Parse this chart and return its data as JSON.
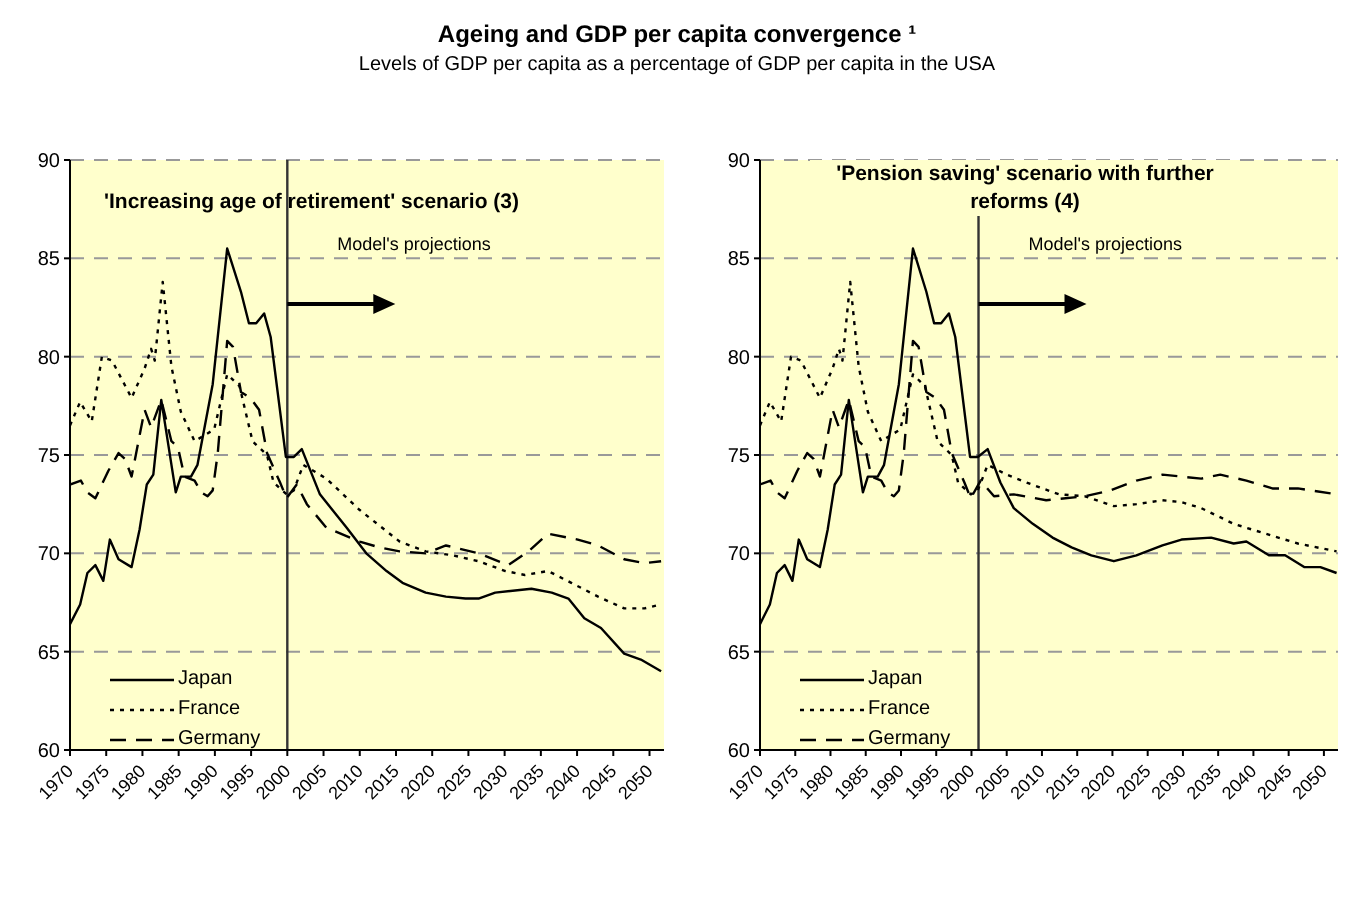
{
  "chart_data": [
    {
      "type": "line",
      "title": "Ageing and GDP per capita convergence ¹",
      "subtitle": "Levels of GDP per capita as a percentage of GDP per capita in the USA",
      "annotations": [
        "'Increasing age of retirement' scenario (3)"
      ],
      "xlim": [
        1970,
        2052
      ],
      "xticks": [
        1970,
        1975,
        1980,
        1985,
        1990,
        1995,
        2000,
        2005,
        2010,
        2015,
        2020,
        2025,
        2030,
        2035,
        2040,
        2045,
        2050
      ],
      "ylim": [
        60,
        90
      ],
      "yticks": [
        60,
        65,
        70,
        75,
        80,
        85,
        90
      ],
      "grid": "y",
      "legend": "bottom left",
      "marker": "none",
      "ref_lines": [
        {
          "axis": "x",
          "value": 2000,
          "label": "Model's projections",
          "color": "#333333"
        }
      ],
      "series": [
        {
          "name": "Japan",
          "color": "#000000",
          "line_style": "solid",
          "x": [
            1970,
            1971.4,
            1972.4,
            1973.5,
            1974.6,
            1975.5,
            1976.7,
            1978.5,
            1979.6,
            1980.6,
            1981.5,
            1982.6,
            1984.6,
            1985.3,
            1986.7,
            1987.6,
            1989.7,
            1991.7,
            1993.6,
            1994.7,
            1995.7,
            1996.8,
            1997.7,
            1999.8,
            2000.9,
            2002,
            2004.5,
            2008.2,
            2010.9,
            2013.7,
            2015.9,
            2019.1,
            2021.9,
            2024.6,
            2026.4,
            2028.7,
            2033.7,
            2036.5,
            2038.8,
            2041,
            2043.3,
            2046.5,
            2048.8,
            2051.6
          ],
          "values": [
            66.4,
            67.4,
            69.0,
            69.4,
            68.6,
            70.7,
            69.7,
            69.3,
            71.2,
            73.5,
            74.0,
            77.8,
            73.1,
            73.9,
            73.9,
            74.5,
            78.6,
            85.5,
            83.3,
            81.7,
            81.7,
            82.2,
            81.0,
            74.9,
            74.9,
            75.3,
            73.0,
            71.3,
            70.0,
            69.1,
            68.5,
            68.0,
            67.8,
            67.7,
            67.7,
            68.0,
            68.2,
            68.0,
            67.7,
            66.7,
            66.2,
            64.9,
            64.6,
            64.0
          ]
        },
        {
          "name": "France",
          "color": "#000000",
          "line_style": "dotted",
          "x": [
            1970,
            1971.4,
            1973,
            1974.4,
            1975.8,
            1978.5,
            1980.3,
            1981.2,
            1981.7,
            1982.8,
            1984,
            1985.3,
            1987.2,
            1989.9,
            1991.7,
            1993.4,
            1995.2,
            1997.2,
            1998.1,
            1999.9,
            2000.9,
            2002.2,
            2005.4,
            2010,
            2015.5,
            2019.1,
            2022.8,
            2026.4,
            2030.1,
            2032.8,
            2036,
            2039.2,
            2042.9,
            2046.5,
            2049.3,
            2051.6
          ],
          "values": [
            76.5,
            77.7,
            76.7,
            80.0,
            79.8,
            77.9,
            79.4,
            80.4,
            79.8,
            83.8,
            79.5,
            77.2,
            75.7,
            76.3,
            79.1,
            78.5,
            75.7,
            75.0,
            73.6,
            73.0,
            73.2,
            74.5,
            73.8,
            72.2,
            70.6,
            70.1,
            69.9,
            69.6,
            69.1,
            68.9,
            69.1,
            68.5,
            67.8,
            67.2,
            67.2,
            67.4
          ]
        },
        {
          "name": "Germany",
          "color": "#000000",
          "line_style": "dashed",
          "x": [
            1970,
            1971.5,
            1972.4,
            1973.5,
            1975.3,
            1976.7,
            1977.6,
            1978.5,
            1980.3,
            1981.2,
            1982.6,
            1984,
            1984.9,
            1985.8,
            1987.2,
            1988.1,
            1989,
            1989.7,
            1990.4,
            1991.7,
            1992.5,
            1993.6,
            1994.9,
            1996.1,
            1997.2,
            1999,
            1999.9,
            2001.3,
            2002.7,
            2005.4,
            2010,
            2012.7,
            2015.5,
            2019.1,
            2021.9,
            2026.4,
            2030.5,
            2033.3,
            2036,
            2040.1,
            2042.9,
            2046.5,
            2049.3,
            2051.6
          ],
          "values": [
            73.5,
            73.7,
            73.1,
            72.8,
            74.2,
            75.1,
            74.8,
            73.9,
            77.3,
            76.4,
            77.8,
            75.7,
            75.4,
            73.9,
            73.7,
            73.1,
            72.9,
            73.2,
            75.1,
            80.8,
            80.5,
            78.2,
            77.9,
            77.3,
            75.1,
            73.6,
            72.8,
            73.5,
            72.5,
            71.3,
            70.6,
            70.3,
            70.1,
            70.0,
            70.4,
            70.0,
            69.4,
            70.1,
            71.0,
            70.7,
            70.4,
            69.7,
            69.5,
            69.6
          ]
        }
      ]
    },
    {
      "type": "line",
      "annotations": [
        "'Pension saving' scenario with further reforms (4)"
      ],
      "xlim": [
        1970,
        2052
      ],
      "xticks": [
        1970,
        1975,
        1980,
        1985,
        1990,
        1995,
        2000,
        2005,
        2010,
        2015,
        2020,
        2025,
        2030,
        2035,
        2040,
        2045,
        2050
      ],
      "ylim": [
        60,
        90
      ],
      "yticks": [
        60,
        65,
        70,
        75,
        80,
        85,
        90
      ],
      "grid": "y",
      "legend": "bottom left",
      "marker": "none",
      "ref_lines": [
        {
          "axis": "x",
          "value": 2001,
          "label": "Model's projections",
          "color": "#333333"
        }
      ],
      "series": [
        {
          "name": "Japan",
          "color": "#000000",
          "line_style": "solid",
          "x": [
            1970,
            1971.4,
            1972.4,
            1973.5,
            1974.6,
            1975.5,
            1976.7,
            1978.5,
            1979.6,
            1980.6,
            1981.5,
            1982.6,
            1984.6,
            1985.3,
            1986.7,
            1987.6,
            1989.7,
            1991.7,
            1993.6,
            1994.7,
            1995.7,
            1996.8,
            1997.7,
            1999.8,
            2000.9,
            2002.3,
            2004.1,
            2006,
            2008.7,
            2011.5,
            2014.2,
            2017,
            2020.2,
            2023.4,
            2027.1,
            2029.8,
            2034,
            2037.2,
            2039,
            2042.2,
            2044.5,
            2047.2,
            2049.5,
            2051.8
          ],
          "values": [
            66.4,
            67.4,
            69.0,
            69.4,
            68.6,
            70.7,
            69.7,
            69.3,
            71.2,
            73.5,
            74.0,
            77.8,
            73.1,
            73.9,
            73.9,
            74.5,
            78.6,
            85.5,
            83.3,
            81.7,
            81.7,
            82.2,
            81.0,
            74.9,
            74.9,
            75.3,
            73.6,
            72.3,
            71.5,
            70.8,
            70.3,
            69.9,
            69.6,
            69.9,
            70.4,
            70.7,
            70.8,
            70.5,
            70.6,
            69.9,
            69.9,
            69.3,
            69.3,
            69.0
          ]
        },
        {
          "name": "France",
          "color": "#000000",
          "line_style": "dotted",
          "x": [
            1970,
            1971.4,
            1973,
            1974.4,
            1975.8,
            1978.5,
            1980.3,
            1981.2,
            1981.7,
            1982.8,
            1984,
            1985.3,
            1987.2,
            1989.9,
            1991.7,
            1993.4,
            1995.2,
            1997.2,
            1998.1,
            1999.9,
            2000.9,
            2002.3,
            2005,
            2007.8,
            2012.4,
            2016.1,
            2020.2,
            2023.4,
            2027.1,
            2029.8,
            2032.6,
            2037.2,
            2041.7,
            2046.3,
            2051.8
          ],
          "values": [
            76.5,
            77.7,
            76.7,
            80.0,
            79.8,
            77.9,
            79.4,
            80.4,
            79.8,
            83.8,
            79.5,
            77.2,
            75.7,
            76.3,
            79.1,
            78.5,
            75.7,
            75.0,
            73.6,
            73.0,
            73.2,
            74.5,
            74.0,
            73.6,
            73.0,
            72.9,
            72.4,
            72.5,
            72.7,
            72.6,
            72.3,
            71.5,
            71.0,
            70.5,
            70.1
          ]
        },
        {
          "name": "Germany",
          "color": "#000000",
          "line_style": "dashed",
          "x": [
            1970,
            1971.5,
            1972.4,
            1973.5,
            1975.3,
            1976.7,
            1977.6,
            1978.5,
            1980.3,
            1981.2,
            1982.6,
            1984,
            1984.9,
            1985.8,
            1987.2,
            1988.1,
            1989,
            1989.7,
            1990.4,
            1991.7,
            1992.5,
            1993.6,
            1994.9,
            1996.1,
            1997.2,
            1999,
            1999.9,
            2001.3,
            2003.2,
            2006,
            2010.6,
            2016.1,
            2019.7,
            2023.4,
            2027.1,
            2032.6,
            2035.3,
            2039,
            2042.7,
            2046.3,
            2051.8
          ],
          "values": [
            73.5,
            73.7,
            73.1,
            72.8,
            74.2,
            75.1,
            74.8,
            73.9,
            77.3,
            76.4,
            77.8,
            75.7,
            75.4,
            73.9,
            73.7,
            73.1,
            72.9,
            73.2,
            75.1,
            80.8,
            80.5,
            78.2,
            77.9,
            77.3,
            75.1,
            73.6,
            72.8,
            73.7,
            72.9,
            73.0,
            72.7,
            72.9,
            73.2,
            73.7,
            74.0,
            73.8,
            74.0,
            73.7,
            73.3,
            73.3,
            73.0
          ]
        }
      ]
    }
  ]
}
